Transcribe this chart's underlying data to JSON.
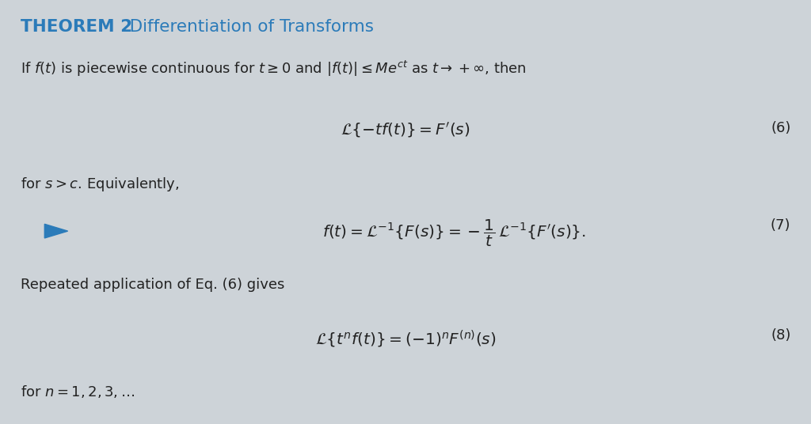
{
  "title_bold": "THEOREM 2",
  "title_regular": "   Differentiation of Transforms",
  "title_color": "#2b7bb9",
  "background_color": "#cdd3d8",
  "text_color": "#222222",
  "arrow_color": "#2b7bb9",
  "line1": "If $f(t)$ is piecewise continuous for $t \\geq 0$ and $|f(t)| \\leq Me^{ct}$ as $t \\rightarrow +\\infty$, then",
  "eq6": "$\\mathcal{L}\\{-tf(t)\\} = F'(s)$",
  "eq6_num": "(6)",
  "line2": "for $s > c$. Equivalently,",
  "eq7": "$f(t) = \\mathcal{L}^{-1}\\{F(s)\\} = -\\dfrac{1}{t}\\,\\mathcal{L}^{-1}\\{F'(s)\\}.$",
  "eq7_num": "(7)",
  "line3": "Repeated application of Eq. (6) gives",
  "eq8": "$\\mathcal{L}\\{t^n f(t)\\} = (-1)^n F^{(n)}(s)$",
  "eq8_num": "(8)",
  "line4": "for $n = 1, 2, 3, \\ldots$",
  "figsize": [
    10.24,
    5.36
  ],
  "dpi": 100
}
